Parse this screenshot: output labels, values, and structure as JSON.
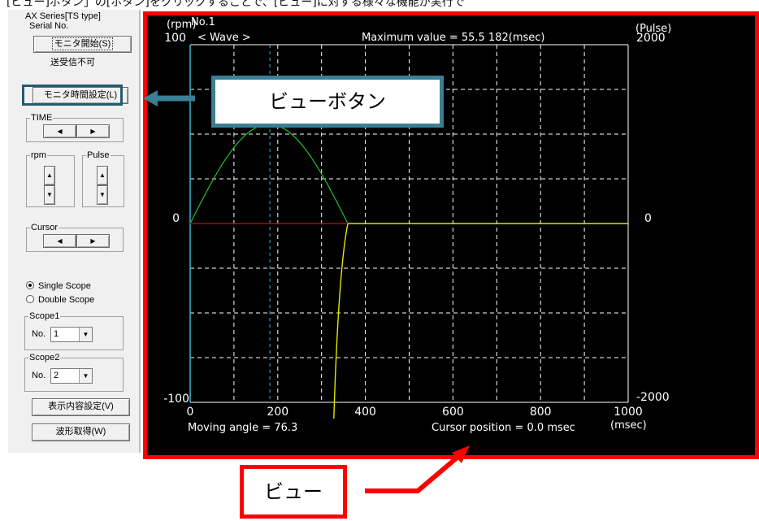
{
  "caption": "[ビュー]ボタン」の[ボタン]をクリックすることで、[ビュー]に対する様々な機能が実行で",
  "panel": {
    "series": "AX Series[TS type]",
    "serial_label": "Serial No.",
    "monitor_start": "モニタ開始(S)",
    "comm_status": "送受信不可",
    "monitor_time": "モニタ時間設定(L)",
    "time_label": "TIME",
    "rpm_label": "rpm",
    "pulse_label": "Pulse",
    "cursor_label": "Cursor",
    "single_scope": "Single Scope",
    "double_scope": "Double Scope",
    "scope1_label": "Scope1",
    "scope2_label": "Scope2",
    "no_label": "No.",
    "scope1_no": "1",
    "scope2_no": "2",
    "display_settings": "表示内容設定(V)",
    "waveform_get": "波形取得(W)"
  },
  "callouts": {
    "view_button": "ビューボタン",
    "view": "ビュー"
  },
  "scope": {
    "left_unit": "(rpm)",
    "channel": "No.1",
    "wave_label": "< Wave >",
    "maximum": "Maximum value =  55.5   182(msec)",
    "right_unit": "(Pulse)",
    "y_left_top": "100",
    "y_left_mid": "0",
    "y_left_bottom": "-100",
    "y_right_top": "2000",
    "y_right_mid": "0",
    "y_right_bottom": "-2000",
    "x_ticks": [
      "0",
      "200",
      "400",
      "600",
      "800",
      "1000"
    ],
    "x_unit": "(msec)",
    "moving_angle": "Moving angle =  76.3",
    "cursor_position": "Cursor position =     0.0 msec",
    "colors": {
      "speed": "#22c322",
      "pulse": "#e6e600",
      "zero": "#c00000",
      "cursor": "#3db4d6",
      "grid": "#ffffff"
    }
  }
}
